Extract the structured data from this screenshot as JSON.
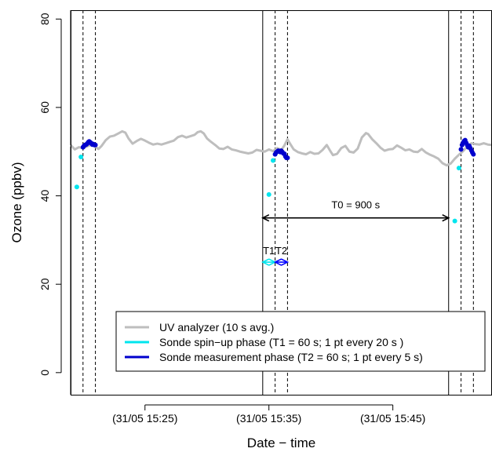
{
  "chart_data": {
    "type": "line",
    "xlabel": "Date − time",
    "ylabel": "Ozone (ppbv)",
    "x_unit": "minutes on 31/05 (time of day)",
    "xlim": [
      "15:19:00",
      "15:53:00"
    ],
    "ylim": [
      -5,
      82
    ],
    "yticks": [
      0,
      20,
      40,
      60,
      80
    ],
    "xticks": [
      {
        "t": "15:25",
        "label": "(31/05 15:25)"
      },
      {
        "t": "15:35",
        "label": "(31/05 15:35)"
      },
      {
        "t": "15:45",
        "label": "(31/05 15:45)"
      }
    ],
    "solid_vlines": [
      "15:19:00",
      "15:34:30",
      "15:49:30"
    ],
    "dashed_vlines": [
      "15:20:00",
      "15:21:00",
      "15:35:30",
      "15:36:30",
      "15:50:30",
      "15:51:30"
    ],
    "series": [
      {
        "name": "UV analyzer (10 s avg.)",
        "color": "#bebebe",
        "style": "line",
        "points": [
          [
            "15:19:00",
            51.5
          ],
          [
            "15:19:20",
            50.5
          ],
          [
            "15:19:40",
            51.0
          ],
          [
            "15:20:00",
            50.8
          ],
          [
            "15:20:20",
            51.2
          ],
          [
            "15:20:40",
            51.6
          ],
          [
            "15:21:00",
            51.1
          ],
          [
            "15:21:15",
            50.6
          ],
          [
            "15:21:30",
            51.3
          ],
          [
            "15:21:50",
            52.6
          ],
          [
            "15:22:10",
            53.4
          ],
          [
            "15:22:30",
            53.6
          ],
          [
            "15:22:50",
            54.1
          ],
          [
            "15:23:10",
            54.6
          ],
          [
            "15:23:25",
            54.3
          ],
          [
            "15:23:40",
            53.0
          ],
          [
            "15:24:00",
            51.8
          ],
          [
            "15:24:20",
            52.4
          ],
          [
            "15:24:40",
            52.9
          ],
          [
            "15:25:00",
            52.5
          ],
          [
            "15:25:20",
            52.0
          ],
          [
            "15:25:40",
            51.6
          ],
          [
            "15:26:00",
            51.8
          ],
          [
            "15:26:20",
            51.6
          ],
          [
            "15:26:40",
            51.9
          ],
          [
            "15:27:00",
            52.2
          ],
          [
            "15:27:20",
            52.5
          ],
          [
            "15:27:40",
            53.3
          ],
          [
            "15:28:00",
            53.6
          ],
          [
            "15:28:20",
            53.2
          ],
          [
            "15:28:40",
            53.5
          ],
          [
            "15:29:00",
            53.8
          ],
          [
            "15:29:15",
            54.4
          ],
          [
            "15:29:30",
            54.6
          ],
          [
            "15:29:45",
            54.1
          ],
          [
            "15:30:00",
            53.0
          ],
          [
            "15:30:20",
            52.2
          ],
          [
            "15:30:40",
            51.5
          ],
          [
            "15:31:00",
            50.7
          ],
          [
            "15:31:20",
            50.6
          ],
          [
            "15:31:40",
            51.1
          ],
          [
            "15:32:00",
            50.5
          ],
          [
            "15:32:20",
            50.3
          ],
          [
            "15:32:40",
            50.0
          ],
          [
            "15:33:00",
            49.8
          ],
          [
            "15:33:20",
            49.6
          ],
          [
            "15:33:40",
            49.8
          ],
          [
            "15:34:00",
            50.4
          ],
          [
            "15:34:20",
            50.2
          ],
          [
            "15:34:40",
            50.0
          ],
          [
            "15:35:00",
            50.5
          ],
          [
            "15:35:20",
            50.1
          ],
          [
            "15:35:40",
            50.8
          ],
          [
            "15:36:00",
            50.4
          ],
          [
            "15:36:15",
            51.4
          ],
          [
            "15:36:30",
            52.8
          ],
          [
            "15:36:45",
            51.6
          ],
          [
            "15:37:00",
            50.5
          ],
          [
            "15:37:20",
            49.9
          ],
          [
            "15:37:40",
            49.6
          ],
          [
            "15:38:00",
            49.4
          ],
          [
            "15:38:20",
            49.9
          ],
          [
            "15:38:40",
            49.5
          ],
          [
            "15:39:00",
            49.6
          ],
          [
            "15:39:20",
            50.4
          ],
          [
            "15:39:40",
            51.5
          ],
          [
            "15:39:55",
            50.3
          ],
          [
            "15:40:10",
            49.2
          ],
          [
            "15:40:30",
            49.5
          ],
          [
            "15:40:50",
            50.8
          ],
          [
            "15:41:10",
            51.3
          ],
          [
            "15:41:30",
            50.0
          ],
          [
            "15:41:50",
            49.8
          ],
          [
            "15:42:10",
            50.7
          ],
          [
            "15:42:30",
            53.2
          ],
          [
            "15:42:50",
            54.2
          ],
          [
            "15:43:00",
            54.0
          ],
          [
            "15:43:20",
            52.8
          ],
          [
            "15:43:40",
            51.9
          ],
          [
            "15:44:00",
            50.9
          ],
          [
            "15:44:20",
            50.2
          ],
          [
            "15:44:40",
            50.5
          ],
          [
            "15:45:00",
            50.6
          ],
          [
            "15:45:20",
            51.4
          ],
          [
            "15:45:40",
            50.9
          ],
          [
            "15:46:00",
            50.3
          ],
          [
            "15:46:20",
            50.5
          ],
          [
            "15:46:40",
            50.0
          ],
          [
            "15:47:00",
            49.9
          ],
          [
            "15:47:20",
            50.6
          ],
          [
            "15:47:40",
            49.8
          ],
          [
            "15:48:00",
            49.3
          ],
          [
            "15:48:20",
            48.9
          ],
          [
            "15:48:40",
            48.4
          ],
          [
            "15:49:00",
            47.4
          ],
          [
            "15:49:20",
            46.9
          ],
          [
            "15:49:40",
            47.3
          ],
          [
            "15:50:00",
            48.4
          ],
          [
            "15:50:20",
            49.3
          ],
          [
            "15:50:40",
            50.1
          ],
          [
            "15:51:00",
            51.2
          ],
          [
            "15:51:20",
            51.9
          ],
          [
            "15:51:40",
            51.7
          ],
          [
            "15:52:00",
            51.6
          ],
          [
            "15:52:20",
            51.9
          ],
          [
            "15:52:40",
            51.6
          ],
          [
            "15:53:00",
            51.5
          ]
        ]
      },
      {
        "name": "Sonde spin−up phase (T1 = 60 s; 1 pt every 20 s )",
        "color": "#00e5ee",
        "style": "points",
        "points": [
          [
            "15:19:30",
            42.0
          ],
          [
            "15:19:50",
            48.8
          ],
          [
            "15:35:00",
            40.3
          ],
          [
            "15:35:20",
            48.0
          ],
          [
            "15:50:00",
            34.3
          ],
          [
            "15:50:20",
            46.3
          ]
        ]
      },
      {
        "name": "Sonde measurement phase (T2 = 60 s; 1 pt every 5 s)",
        "color": "#0000cd",
        "style": "line+points",
        "segments": [
          [
            [
              "15:20:00",
              51.0
            ],
            [
              "15:20:05",
              51.3
            ],
            [
              "15:20:10",
              51.5
            ],
            [
              "15:20:15",
              51.6
            ],
            [
              "15:20:20",
              51.8
            ],
            [
              "15:20:25",
              52.1
            ],
            [
              "15:20:30",
              52.3
            ],
            [
              "15:20:35",
              52.1
            ],
            [
              "15:20:40",
              51.9
            ],
            [
              "15:20:45",
              51.6
            ],
            [
              "15:20:50",
              51.7
            ],
            [
              "15:20:55",
              51.5
            ],
            [
              "15:21:00",
              51.5
            ]
          ],
          [
            [
              "15:35:30",
              49.4
            ],
            [
              "15:35:35",
              49.8
            ],
            [
              "15:35:40",
              50.0
            ],
            [
              "15:35:45",
              50.2
            ],
            [
              "15:35:50",
              50.1
            ],
            [
              "15:35:55",
              49.9
            ],
            [
              "15:36:00",
              50.2
            ],
            [
              "15:36:05",
              49.9
            ],
            [
              "15:36:10",
              49.6
            ],
            [
              "15:36:15",
              49.5
            ],
            [
              "15:36:20",
              48.9
            ],
            [
              "15:36:25",
              48.6
            ],
            [
              "15:36:30",
              48.6
            ]
          ],
          [
            [
              "15:50:30",
              50.5
            ],
            [
              "15:50:35",
              51.5
            ],
            [
              "15:50:40",
              52.0
            ],
            [
              "15:50:45",
              52.4
            ],
            [
              "15:50:50",
              52.6
            ],
            [
              "15:50:55",
              52.0
            ],
            [
              "15:51:00",
              51.5
            ],
            [
              "15:51:05",
              51.0
            ],
            [
              "15:51:10",
              51.3
            ],
            [
              "15:51:15",
              50.8
            ],
            [
              "15:51:20",
              50.3
            ],
            [
              "15:51:25",
              49.8
            ],
            [
              "15:51:30",
              49.4
            ]
          ]
        ]
      }
    ],
    "annotations": [
      {
        "text": "T0 = 900 s",
        "from": "15:34:30",
        "to": "15:49:30",
        "y": 35,
        "color": "#000000"
      },
      {
        "text": "T1",
        "from": "15:34:30",
        "to": "15:35:30",
        "y": 25,
        "color": "#00e5ee"
      },
      {
        "text": "T2",
        "from": "15:35:30",
        "to": "15:36:30",
        "y": 25,
        "color": "#0000ff"
      }
    ],
    "legend_position": "bottom-right"
  }
}
